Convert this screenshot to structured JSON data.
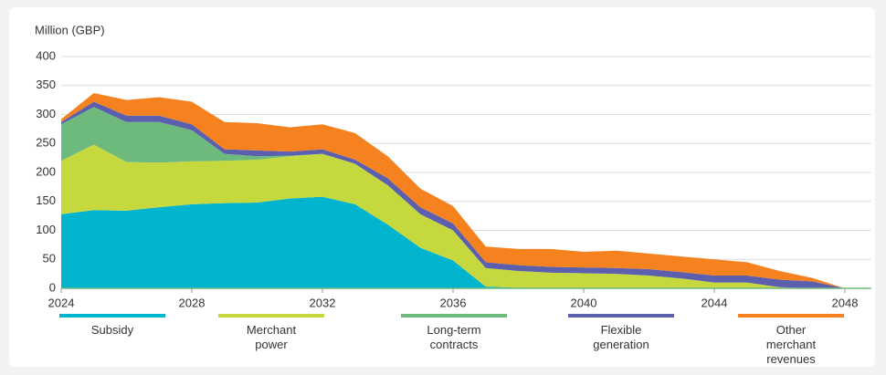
{
  "chart_data": {
    "type": "stacked_area",
    "y_axis_label": "Million (GBP)",
    "x": [
      2024,
      2025,
      2026,
      2027,
      2028,
      2029,
      2030,
      2031,
      2032,
      2033,
      2034,
      2035,
      2036,
      2037,
      2038,
      2039,
      2040,
      2041,
      2042,
      2043,
      2044,
      2045,
      2046,
      2047,
      2048
    ],
    "series": [
      {
        "name": "Subsidy",
        "color": "#00b4cd",
        "values": [
          128,
          135,
          134,
          140,
          145,
          147,
          148,
          155,
          158,
          145,
          110,
          70,
          48,
          3,
          1,
          0,
          0,
          0,
          0,
          0,
          0,
          0,
          0,
          0,
          0
        ]
      },
      {
        "name": "Merchant power",
        "color": "#c5d93f",
        "values": [
          92,
          113,
          84,
          77,
          74,
          73,
          74,
          73,
          74,
          70,
          68,
          58,
          52,
          32,
          29,
          27,
          26,
          25,
          22,
          17,
          10,
          10,
          2,
          0,
          0
        ]
      },
      {
        "name": "Long-term contracts",
        "color": "#6dba7c",
        "values": [
          63,
          65,
          69,
          70,
          54,
          12,
          6,
          1,
          0,
          0,
          0,
          0,
          0,
          0,
          0,
          0,
          0,
          0,
          0,
          0,
          0,
          0,
          0,
          0,
          0
        ]
      },
      {
        "name": "Flexible generation",
        "color": "#5b5fae",
        "values": [
          4,
          9,
          11,
          11,
          10,
          8,
          10,
          7,
          8,
          7,
          12,
          12,
          12,
          10,
          10,
          10,
          10,
          10,
          11,
          11,
          12,
          12,
          13,
          12,
          0
        ]
      },
      {
        "name": "Other merchant revenues",
        "color": "#f5821f",
        "values": [
          5,
          15,
          27,
          32,
          39,
          47,
          47,
          42,
          43,
          46,
          38,
          32,
          30,
          27,
          28,
          31,
          27,
          30,
          27,
          27,
          28,
          23,
          15,
          6,
          0
        ]
      }
    ],
    "xlim": [
      2024,
      2048.8
    ],
    "xticks": [
      2024,
      2028,
      2032,
      2036,
      2040,
      2044,
      2048
    ],
    "ylim": [
      0,
      400
    ],
    "yticks": [
      0,
      50,
      100,
      150,
      200,
      250,
      300,
      350,
      400
    ],
    "grid": true,
    "legend": "bottom"
  }
}
